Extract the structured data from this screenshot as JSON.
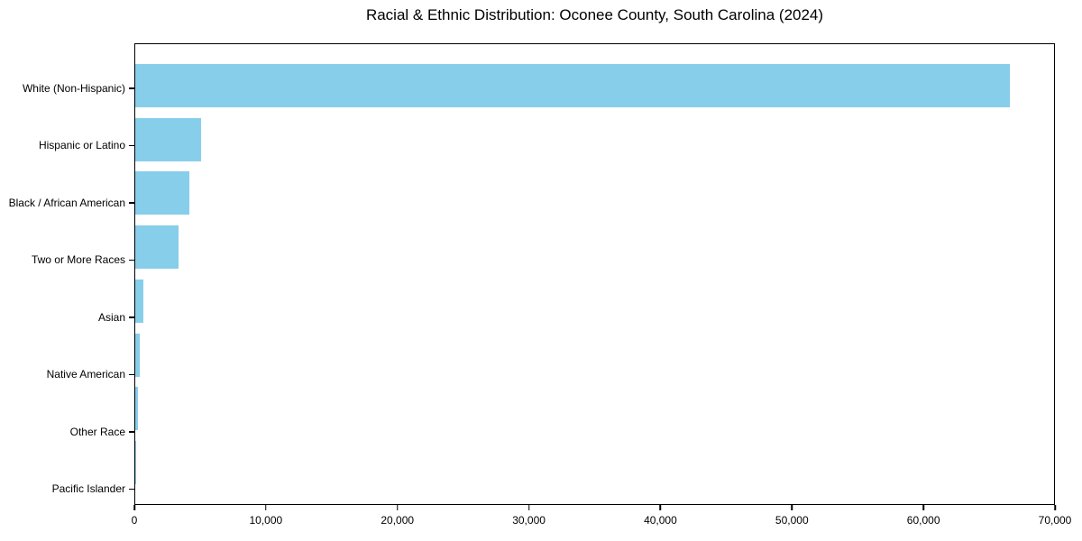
{
  "chart_data": {
    "type": "bar",
    "orientation": "horizontal",
    "title": "Racial & Ethnic Distribution: Oconee County, South Carolina (2024)",
    "categories": [
      "White (Non-Hispanic)",
      "Hispanic or Latino",
      "Black / African American",
      "Two or More Races",
      "Asian",
      "Native American",
      "Other Race",
      "Pacific Islander"
    ],
    "values": [
      66600,
      5000,
      4100,
      3300,
      600,
      350,
      180,
      30
    ],
    "xlabel": "",
    "ylabel": "",
    "xlim": [
      0,
      70000
    ],
    "x_ticks": [
      0,
      10000,
      20000,
      30000,
      40000,
      50000,
      60000,
      70000
    ],
    "x_tick_labels": [
      "0",
      "10,000",
      "20,000",
      "30,000",
      "40,000",
      "50,000",
      "60,000",
      "70,000"
    ],
    "grid": false,
    "legend": "none",
    "colors": {
      "bar": "#87CEEB",
      "axis": "#000000",
      "text": "#000000",
      "background": "#FFFFFF"
    }
  }
}
